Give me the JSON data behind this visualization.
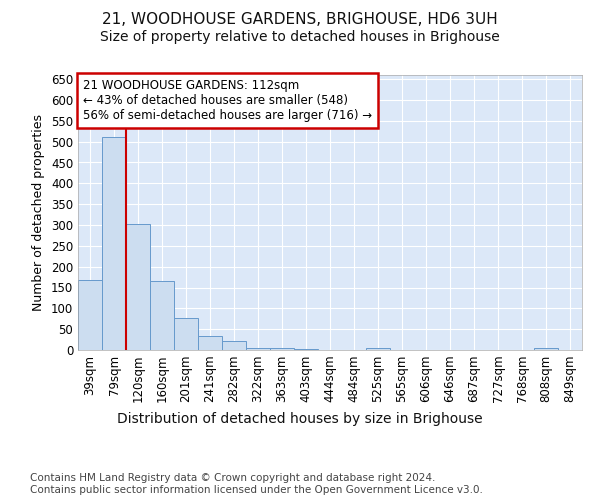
{
  "title1": "21, WOODHOUSE GARDENS, BRIGHOUSE, HD6 3UH",
  "title2": "Size of property relative to detached houses in Brighouse",
  "xlabel": "Distribution of detached houses by size in Brighouse",
  "ylabel": "Number of detached properties",
  "categories": [
    "39sqm",
    "79sqm",
    "120sqm",
    "160sqm",
    "201sqm",
    "241sqm",
    "282sqm",
    "322sqm",
    "363sqm",
    "403sqm",
    "444sqm",
    "484sqm",
    "525sqm",
    "565sqm",
    "606sqm",
    "646sqm",
    "687sqm",
    "727sqm",
    "768sqm",
    "808sqm",
    "849sqm"
  ],
  "values": [
    167,
    511,
    302,
    165,
    78,
    33,
    22,
    6,
    5,
    2,
    1,
    1,
    5,
    0,
    0,
    0,
    0,
    0,
    0,
    5,
    0
  ],
  "bar_color": "#ccddf0",
  "bar_edge_color": "#6699cc",
  "vline_x": 1.5,
  "vline_color": "#cc0000",
  "annotation_text": "21 WOODHOUSE GARDENS: 112sqm\n← 43% of detached houses are smaller (548)\n56% of semi-detached houses are larger (716) →",
  "annotation_box_color": "#ffffff",
  "annotation_box_edge": "#cc0000",
  "ylim": [
    0,
    660
  ],
  "yticks": [
    0,
    50,
    100,
    150,
    200,
    250,
    300,
    350,
    400,
    450,
    500,
    550,
    600,
    650
  ],
  "footer": "Contains HM Land Registry data © Crown copyright and database right 2024.\nContains public sector information licensed under the Open Government Licence v3.0.",
  "plot_bg_color": "#dce8f8",
  "title1_fontsize": 11,
  "title2_fontsize": 10,
  "tick_fontsize": 8.5,
  "ylabel_fontsize": 9,
  "xlabel_fontsize": 10,
  "footer_fontsize": 7.5,
  "ann_fontsize": 8.5
}
